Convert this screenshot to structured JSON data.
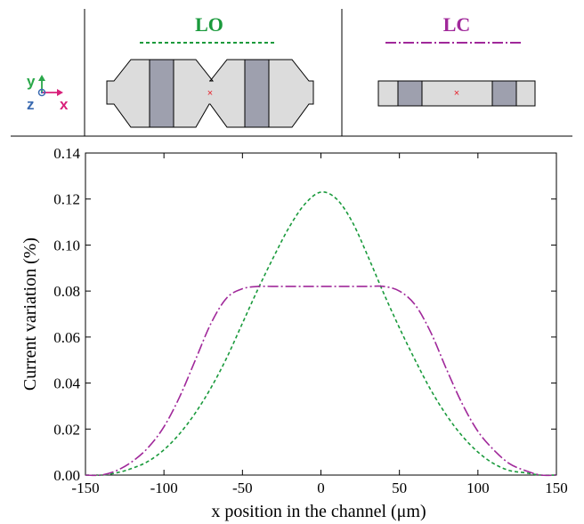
{
  "inset": {
    "axes_letters": {
      "y": "y",
      "z": "z",
      "x": "x"
    },
    "panels": [
      {
        "label": "LO",
        "color": "#1a9a3c",
        "style": "dashed"
      },
      {
        "label": "LC",
        "color": "#a0289a",
        "style": "dashdot"
      }
    ],
    "colors": {
      "device_fill": "#dcdcdc",
      "electrode_fill": "#9ea0ae",
      "marker": "#e8202a",
      "axis_y": "#2aa84a",
      "axis_z": "#3a6ab0",
      "axis_x": "#d8207a"
    }
  },
  "chart_data": {
    "type": "line",
    "xlabel": "x position in the channel (μm)",
    "ylabel": "Current variation (%)",
    "xlim": [
      -150,
      150
    ],
    "ylim": [
      0,
      0.14
    ],
    "xticks": [
      -150,
      -100,
      -50,
      0,
      50,
      100,
      150
    ],
    "yticks": [
      "0.00",
      "0.02",
      "0.04",
      "0.06",
      "0.08",
      "0.10",
      "0.12",
      "0.14"
    ],
    "grid": false,
    "series": [
      {
        "name": "LO",
        "color": "#1a9a3c",
        "style": "dashed",
        "x": [
          -150,
          -140,
          -130,
          -120,
          -110,
          -100,
          -90,
          -80,
          -70,
          -60,
          -50,
          -40,
          -30,
          -20,
          -10,
          0,
          10,
          20,
          30,
          40,
          50,
          60,
          70,
          80,
          90,
          100,
          110,
          120,
          130,
          140,
          150
        ],
        "y": [
          0.0,
          0.0,
          0.001,
          0.003,
          0.006,
          0.011,
          0.018,
          0.027,
          0.038,
          0.051,
          0.066,
          0.081,
          0.095,
          0.108,
          0.118,
          0.123,
          0.12,
          0.11,
          0.095,
          0.079,
          0.064,
          0.05,
          0.037,
          0.026,
          0.017,
          0.01,
          0.005,
          0.002,
          0.001,
          0.0,
          0.0
        ]
      },
      {
        "name": "LC",
        "color": "#a0289a",
        "style": "dashdot",
        "x": [
          -150,
          -140,
          -130,
          -120,
          -110,
          -100,
          -90,
          -80,
          -70,
          -60,
          -50,
          -40,
          -30,
          -20,
          -10,
          0,
          10,
          20,
          30,
          40,
          50,
          60,
          70,
          80,
          90,
          100,
          110,
          120,
          130,
          140,
          150
        ],
        "y": [
          0.0,
          0.0,
          0.002,
          0.006,
          0.012,
          0.021,
          0.034,
          0.05,
          0.066,
          0.077,
          0.081,
          0.082,
          0.082,
          0.082,
          0.082,
          0.082,
          0.082,
          0.082,
          0.082,
          0.082,
          0.08,
          0.074,
          0.062,
          0.046,
          0.031,
          0.019,
          0.011,
          0.005,
          0.002,
          0.0,
          0.0
        ]
      }
    ]
  }
}
